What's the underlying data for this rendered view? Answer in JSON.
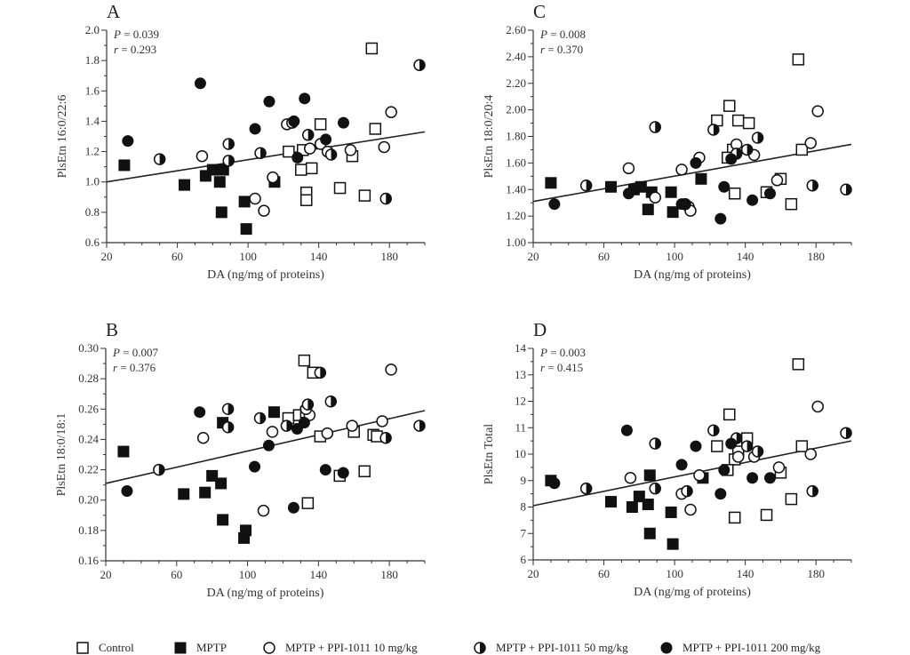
{
  "legend": [
    {
      "name": "Control",
      "marker": "open-square"
    },
    {
      "name": "MPTP",
      "marker": "filled-square"
    },
    {
      "name": "MPTP + PPI-1011 10 mg/kg",
      "marker": "open-circle"
    },
    {
      "name": "MPTP + PPI-1011 50 mg/kg",
      "marker": "half-circle"
    },
    {
      "name": "MPTP + PPI-1011 200 mg/kg",
      "marker": "filled-circle"
    }
  ],
  "chart_data": [
    {
      "type": "scatter",
      "panel": "A",
      "stats": [
        "P = 0.039",
        "r = 0.293"
      ],
      "xlabel": "DA (ng/mg of proteins)",
      "ylabel": "PlsEtn 16:0/22:6",
      "xlim": [
        20,
        200
      ],
      "ylim": [
        0.6,
        2.0
      ],
      "xticks": [
        "20",
        "60",
        "100",
        "140",
        "180"
      ],
      "yticks": [
        "0.6",
        "0.8",
        "1.0",
        "1.2",
        "1.4",
        "1.6",
        "1.8",
        "2.0"
      ],
      "regression": {
        "x": [
          20,
          200
        ],
        "y": [
          1.0,
          1.33
        ]
      },
      "series": [
        {
          "name": "Control",
          "points": [
            [
              170,
              1.88
            ],
            [
              141,
              1.38
            ],
            [
              172,
              1.35
            ],
            [
              123,
              1.2
            ],
            [
              131,
              1.21
            ],
            [
              130,
              1.08
            ],
            [
              136,
              1.09
            ],
            [
              133,
              0.93
            ],
            [
              133,
              0.88
            ],
            [
              152,
              0.96
            ],
            [
              166,
              0.91
            ],
            [
              159,
              1.17
            ]
          ]
        },
        {
          "name": "MPTP",
          "points": [
            [
              30,
              1.11
            ],
            [
              64,
              0.98
            ],
            [
              76,
              1.04
            ],
            [
              80,
              1.08
            ],
            [
              86,
              1.08
            ],
            [
              84,
              1.0
            ],
            [
              85,
              0.8
            ],
            [
              98,
              0.87
            ],
            [
              99,
              0.69
            ],
            [
              115,
              1.0
            ]
          ]
        },
        {
          "name": "MPTP + PPI-1011 10 mg/kg",
          "points": [
            [
              74,
              1.17
            ],
            [
              114,
              1.03
            ],
            [
              104,
              0.89
            ],
            [
              109,
              0.81
            ],
            [
              135,
              1.22
            ],
            [
              141,
              1.25
            ],
            [
              145,
              1.2
            ],
            [
              158,
              1.21
            ],
            [
              177,
              1.23
            ],
            [
              181,
              1.46
            ],
            [
              122,
              1.38
            ]
          ]
        },
        {
          "name": "MPTP + PPI-1011 50 mg/kg",
          "points": [
            [
              50,
              1.15
            ],
            [
              89,
              1.25
            ],
            [
              89,
              1.14
            ],
            [
              107,
              1.19
            ],
            [
              134,
              1.31
            ],
            [
              147,
              1.18
            ],
            [
              178,
              0.89
            ],
            [
              197,
              1.77
            ],
            [
              125,
              1.39
            ]
          ]
        },
        {
          "name": "MPTP + PPI-1011 200 mg/kg",
          "points": [
            [
              32,
              1.27
            ],
            [
              73,
              1.65
            ],
            [
              104,
              1.35
            ],
            [
              112,
              1.53
            ],
            [
              126,
              1.4
            ],
            [
              132,
              1.55
            ],
            [
              128,
              1.16
            ],
            [
              144,
              1.28
            ],
            [
              154,
              1.39
            ]
          ]
        }
      ]
    },
    {
      "type": "scatter",
      "panel": "C",
      "stats": [
        "P = 0.008",
        "r = 0.370"
      ],
      "xlabel": "DA (ng/mg of proteins)",
      "ylabel": "PlsEtn 18:0/20:4",
      "xlim": [
        20,
        200
      ],
      "ylim": [
        1.0,
        2.6
      ],
      "xticks": [
        "20",
        "60",
        "100",
        "140",
        "180"
      ],
      "yticks": [
        "1.00",
        "1.20",
        "1.40",
        "1.60",
        "1.80",
        "2.00",
        "2.20",
        "2.40",
        "2.60"
      ],
      "regression": {
        "x": [
          20,
          200
        ],
        "y": [
          1.31,
          1.74
        ]
      },
      "series": [
        {
          "name": "Control",
          "points": [
            [
              170,
              2.38
            ],
            [
              131,
              2.03
            ],
            [
              124,
              1.92
            ],
            [
              136,
              1.92
            ],
            [
              142,
              1.9
            ],
            [
              133,
              1.7
            ],
            [
              130,
              1.64
            ],
            [
              134,
              1.37
            ],
            [
              152,
              1.38
            ],
            [
              160,
              1.48
            ],
            [
              166,
              1.29
            ],
            [
              172,
              1.7
            ]
          ]
        },
        {
          "name": "MPTP",
          "points": [
            [
              30,
              1.45
            ],
            [
              64,
              1.42
            ],
            [
              77,
              1.4
            ],
            [
              81,
              1.42
            ],
            [
              87,
              1.38
            ],
            [
              85,
              1.25
            ],
            [
              98,
              1.38
            ],
            [
              99,
              1.23
            ],
            [
              115,
              1.48
            ]
          ]
        },
        {
          "name": "MPTP + PPI-1011 10 mg/kg",
          "points": [
            [
              74,
              1.56
            ],
            [
              104,
              1.55
            ],
            [
              114,
              1.64
            ],
            [
              108,
              1.27
            ],
            [
              109,
              1.24
            ],
            [
              89,
              1.34
            ],
            [
              135,
              1.74
            ],
            [
              145,
              1.66
            ],
            [
              158,
              1.47
            ],
            [
              177,
              1.75
            ],
            [
              181,
              1.99
            ]
          ]
        },
        {
          "name": "MPTP + PPI-1011 50 mg/kg",
          "points": [
            [
              50,
              1.43
            ],
            [
              89,
              1.87
            ],
            [
              122,
              1.85
            ],
            [
              135,
              1.67
            ],
            [
              141,
              1.7
            ],
            [
              147,
              1.79
            ],
            [
              178,
              1.43
            ],
            [
              197,
              1.4
            ],
            [
              106,
              1.29
            ]
          ]
        },
        {
          "name": "MPTP + PPI-1011 200 mg/kg",
          "points": [
            [
              32,
              1.29
            ],
            [
              74,
              1.37
            ],
            [
              112,
              1.6
            ],
            [
              128,
              1.42
            ],
            [
              126,
              1.18
            ],
            [
              132,
              1.63
            ],
            [
              144,
              1.32
            ],
            [
              154,
              1.37
            ],
            [
              104,
              1.29
            ]
          ]
        }
      ]
    },
    {
      "type": "scatter",
      "panel": "B",
      "stats": [
        "P = 0.007",
        "r = 0.376"
      ],
      "xlabel": "DA (ng/mg of proteins)",
      "ylabel": "PlsEtn 18:0/18:1",
      "xlim": [
        20,
        200
      ],
      "ylim": [
        0.16,
        0.3
      ],
      "xticks": [
        "20",
        "60",
        "100",
        "140",
        "180"
      ],
      "yticks": [
        "0.16",
        "0.18",
        "0.20",
        "0.22",
        "0.24",
        "0.26",
        "0.28",
        "0.30"
      ],
      "regression": {
        "x": [
          20,
          200
        ],
        "y": [
          0.211,
          0.259
        ]
      },
      "series": [
        {
          "name": "Control",
          "points": [
            [
              132,
              0.292
            ],
            [
              137,
              0.284
            ],
            [
              123,
              0.254
            ],
            [
              129,
              0.256
            ],
            [
              133,
              0.258
            ],
            [
              141,
              0.242
            ],
            [
              160,
              0.245
            ],
            [
              171,
              0.243
            ],
            [
              173,
              0.242
            ],
            [
              152,
              0.216
            ],
            [
              166,
              0.219
            ],
            [
              134,
              0.198
            ]
          ]
        },
        {
          "name": "MPTP",
          "points": [
            [
              30,
              0.232
            ],
            [
              64,
              0.204
            ],
            [
              76,
              0.205
            ],
            [
              80,
              0.216
            ],
            [
              85,
              0.211
            ],
            [
              86,
              0.251
            ],
            [
              86,
              0.187
            ],
            [
              99,
              0.18
            ],
            [
              98,
              0.175
            ],
            [
              115,
              0.258
            ]
          ]
        },
        {
          "name": "MPTP + PPI-1011 10 mg/kg",
          "points": [
            [
              75,
              0.241
            ],
            [
              109,
              0.193
            ],
            [
              114,
              0.245
            ],
            [
              135,
              0.256
            ],
            [
              145,
              0.244
            ],
            [
              159,
              0.249
            ],
            [
              176,
              0.252
            ],
            [
              181,
              0.286
            ],
            [
              133,
              0.26
            ]
          ]
        },
        {
          "name": "MPTP + PPI-1011 50 mg/kg",
          "points": [
            [
              50,
              0.22
            ],
            [
              89,
              0.26
            ],
            [
              89,
              0.248
            ],
            [
              107,
              0.254
            ],
            [
              122,
              0.249
            ],
            [
              134,
              0.263
            ],
            [
              147,
              0.265
            ],
            [
              141,
              0.284
            ],
            [
              178,
              0.241
            ],
            [
              197,
              0.249
            ]
          ]
        },
        {
          "name": "MPTP + PPI-1011 200 mg/kg",
          "points": [
            [
              32,
              0.206
            ],
            [
              73,
              0.258
            ],
            [
              104,
              0.222
            ],
            [
              112,
              0.236
            ],
            [
              126,
              0.195
            ],
            [
              128,
              0.247
            ],
            [
              132,
              0.251
            ],
            [
              144,
              0.22
            ],
            [
              154,
              0.218
            ]
          ]
        }
      ]
    },
    {
      "type": "scatter",
      "panel": "D",
      "stats": [
        "P = 0.003",
        "r = 0.415"
      ],
      "xlabel": "DA (ng/mg of proteins)",
      "ylabel": "PlsEtn Total",
      "xlim": [
        20,
        200
      ],
      "ylim": [
        6,
        14
      ],
      "xticks": [
        "20",
        "60",
        "100",
        "140",
        "180"
      ],
      "yticks": [
        "6",
        "7",
        "8",
        "9",
        "10",
        "11",
        "12",
        "13",
        "14"
      ],
      "regression": {
        "x": [
          20,
          200
        ],
        "y": [
          8.05,
          10.5
        ]
      },
      "series": [
        {
          "name": "Control",
          "points": [
            [
              170,
              13.4
            ],
            [
              131,
              11.5
            ],
            [
              124,
              10.3
            ],
            [
              141,
              10.6
            ],
            [
              136,
              10.1
            ],
            [
              134,
              9.8
            ],
            [
              130,
              9.4
            ],
            [
              134,
              7.6
            ],
            [
              152,
              7.7
            ],
            [
              160,
              9.3
            ],
            [
              166,
              8.3
            ],
            [
              172,
              10.3
            ]
          ]
        },
        {
          "name": "MPTP",
          "points": [
            [
              30,
              9.0
            ],
            [
              64,
              8.2
            ],
            [
              76,
              8.0
            ],
            [
              80,
              8.4
            ],
            [
              85,
              8.1
            ],
            [
              86,
              9.2
            ],
            [
              86,
              7.0
            ],
            [
              98,
              7.8
            ],
            [
              99,
              6.6
            ],
            [
              116,
              9.1
            ]
          ]
        },
        {
          "name": "MPTP + PPI-1011 10 mg/kg",
          "points": [
            [
              75,
              9.1
            ],
            [
              104,
              8.5
            ],
            [
              109,
              7.9
            ],
            [
              114,
              9.2
            ],
            [
              136,
              9.9
            ],
            [
              145,
              9.9
            ],
            [
              159,
              9.5
            ],
            [
              177,
              10.0
            ],
            [
              181,
              11.8
            ]
          ]
        },
        {
          "name": "MPTP + PPI-1011 50 mg/kg",
          "points": [
            [
              50,
              8.7
            ],
            [
              89,
              10.4
            ],
            [
              89,
              8.7
            ],
            [
              107,
              8.6
            ],
            [
              122,
              10.9
            ],
            [
              135,
              10.6
            ],
            [
              141,
              10.3
            ],
            [
              147,
              10.1
            ],
            [
              178,
              8.6
            ],
            [
              197,
              10.8
            ]
          ]
        },
        {
          "name": "MPTP + PPI-1011 200 mg/kg",
          "points": [
            [
              32,
              8.9
            ],
            [
              73,
              10.9
            ],
            [
              104,
              9.6
            ],
            [
              112,
              10.3
            ],
            [
              126,
              8.5
            ],
            [
              128,
              9.4
            ],
            [
              132,
              10.4
            ],
            [
              144,
              9.1
            ],
            [
              154,
              9.1
            ]
          ]
        }
      ]
    }
  ]
}
